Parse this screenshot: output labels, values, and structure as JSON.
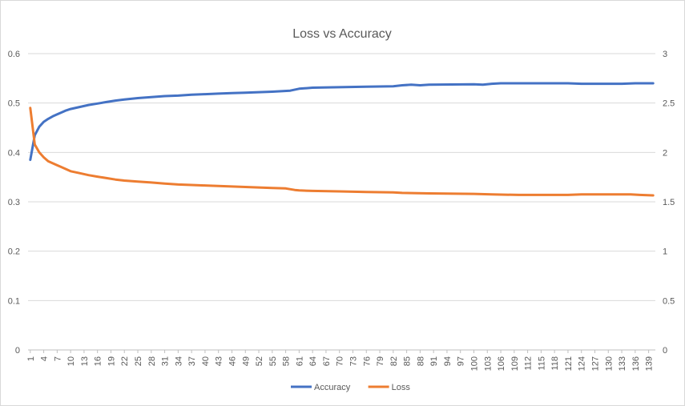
{
  "chart_data": {
    "type": "line",
    "title": "Loss vs Accuracy",
    "xlabel": "",
    "ylabel": "",
    "x_tick_labels": [
      "1",
      "4",
      "7",
      "10",
      "13",
      "16",
      "19",
      "22",
      "25",
      "28",
      "31",
      "34",
      "37",
      "40",
      "43",
      "46",
      "49",
      "52",
      "55",
      "58",
      "61",
      "64",
      "67",
      "70",
      "73",
      "76",
      "79",
      "82",
      "85",
      "88",
      "91",
      "94",
      "97",
      "100",
      "103",
      "106",
      "109",
      "112",
      "115",
      "118",
      "121",
      "124",
      "127",
      "130",
      "133",
      "136",
      "139"
    ],
    "x_range": [
      1,
      140
    ],
    "left_axis": {
      "ylim": [
        0,
        0.6
      ],
      "ticks": [
        "0",
        "0.1",
        "0.2",
        "0.3",
        "0.4",
        "0.5",
        "0.6"
      ]
    },
    "right_axis": {
      "ylim": [
        0,
        3
      ],
      "ticks": [
        "0",
        "0.5",
        "1",
        "1.5",
        "2",
        "2.5",
        "3"
      ]
    },
    "grid": true,
    "legend_position": "bottom",
    "series": [
      {
        "name": "Accuracy",
        "axis": "left",
        "color": "#4472C4",
        "points": [
          [
            1,
            0.385
          ],
          [
            2,
            0.435
          ],
          [
            3,
            0.452
          ],
          [
            4,
            0.462
          ],
          [
            5,
            0.468
          ],
          [
            6,
            0.473
          ],
          [
            7,
            0.477
          ],
          [
            8,
            0.481
          ],
          [
            9,
            0.485
          ],
          [
            10,
            0.488
          ],
          [
            12,
            0.492
          ],
          [
            14,
            0.496
          ],
          [
            16,
            0.499
          ],
          [
            18,
            0.502
          ],
          [
            20,
            0.505
          ],
          [
            22,
            0.507
          ],
          [
            25,
            0.51
          ],
          [
            28,
            0.512
          ],
          [
            31,
            0.514
          ],
          [
            34,
            0.515
          ],
          [
            37,
            0.517
          ],
          [
            40,
            0.518
          ],
          [
            43,
            0.519
          ],
          [
            46,
            0.52
          ],
          [
            49,
            0.521
          ],
          [
            52,
            0.522
          ],
          [
            55,
            0.523
          ],
          [
            57,
            0.524
          ],
          [
            59,
            0.525
          ],
          [
            61,
            0.529
          ],
          [
            64,
            0.531
          ],
          [
            70,
            0.532
          ],
          [
            76,
            0.533
          ],
          [
            82,
            0.534
          ],
          [
            84,
            0.536
          ],
          [
            86,
            0.537
          ],
          [
            88,
            0.536
          ],
          [
            90,
            0.537
          ],
          [
            100,
            0.538
          ],
          [
            102,
            0.537
          ],
          [
            104,
            0.539
          ],
          [
            106,
            0.54
          ],
          [
            121,
            0.54
          ],
          [
            124,
            0.539
          ],
          [
            133,
            0.539
          ],
          [
            136,
            0.54
          ],
          [
            140,
            0.54
          ]
        ]
      },
      {
        "name": "Loss",
        "axis": "right",
        "color": "#ED7D31",
        "points": [
          [
            1,
            2.45
          ],
          [
            2,
            2.08
          ],
          [
            3,
            2.0
          ],
          [
            4,
            1.95
          ],
          [
            5,
            1.91
          ],
          [
            6,
            1.89
          ],
          [
            7,
            1.87
          ],
          [
            8,
            1.85
          ],
          [
            9,
            1.83
          ],
          [
            10,
            1.81
          ],
          [
            12,
            1.79
          ],
          [
            14,
            1.77
          ],
          [
            16,
            1.755
          ],
          [
            18,
            1.74
          ],
          [
            20,
            1.725
          ],
          [
            22,
            1.715
          ],
          [
            25,
            1.705
          ],
          [
            28,
            1.695
          ],
          [
            31,
            1.685
          ],
          [
            34,
            1.675
          ],
          [
            37,
            1.67
          ],
          [
            40,
            1.665
          ],
          [
            43,
            1.66
          ],
          [
            46,
            1.655
          ],
          [
            49,
            1.65
          ],
          [
            52,
            1.645
          ],
          [
            55,
            1.64
          ],
          [
            58,
            1.635
          ],
          [
            60,
            1.62
          ],
          [
            61,
            1.615
          ],
          [
            64,
            1.61
          ],
          [
            70,
            1.605
          ],
          [
            76,
            1.6
          ],
          [
            82,
            1.595
          ],
          [
            84,
            1.59
          ],
          [
            90,
            1.585
          ],
          [
            100,
            1.58
          ],
          [
            104,
            1.575
          ],
          [
            110,
            1.57
          ],
          [
            121,
            1.57
          ],
          [
            124,
            1.575
          ],
          [
            135,
            1.575
          ],
          [
            137,
            1.57
          ],
          [
            140,
            1.565
          ]
        ]
      }
    ]
  }
}
